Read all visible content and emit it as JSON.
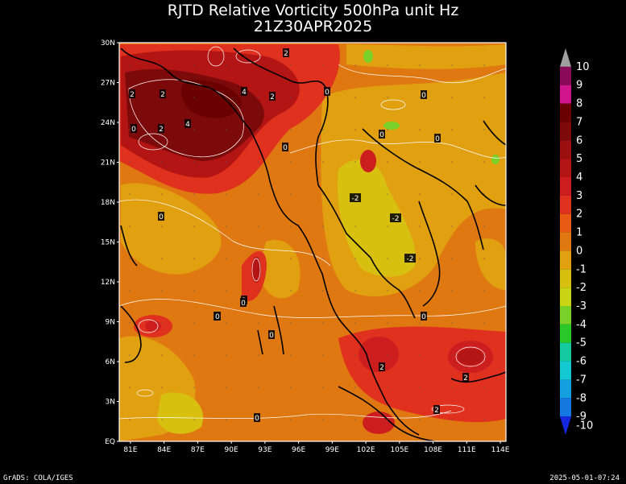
{
  "title_line1": "RJTD Relative Vorticity 500hPa unit Hz",
  "title_line2": "21Z30APR2025",
  "map": {
    "lat_labels": [
      "30N",
      "27N",
      "24N",
      "21N",
      "18N",
      "15N",
      "12N",
      "9N",
      "6N",
      "3N",
      "EQ"
    ],
    "lon_labels": [
      "81E",
      "84E",
      "87E",
      "90E",
      "93E",
      "96E",
      "99E",
      "102E",
      "105E",
      "108E",
      "111E",
      "114E"
    ],
    "lat_range": [
      0,
      30
    ],
    "lon_range": [
      80,
      114.5
    ]
  },
  "colorbar": {
    "levels": [
      {
        "label": "10",
        "color": "#a0a0a0"
      },
      {
        "label": "9",
        "color": "#8a0a5a"
      },
      {
        "label": "8",
        "color": "#d0148c"
      },
      {
        "label": "7",
        "color": "#6b0000"
      },
      {
        "label": "6",
        "color": "#7d0a0a"
      },
      {
        "label": "5",
        "color": "#9b0f0f"
      },
      {
        "label": "4",
        "color": "#b31414"
      },
      {
        "label": "3",
        "color": "#cc1e1e"
      },
      {
        "label": "2",
        "color": "#e0301e"
      },
      {
        "label": "1",
        "color": "#e85a14"
      },
      {
        "label": "0",
        "color": "#e07812"
      },
      {
        "label": "-1",
        "color": "#e0a010"
      },
      {
        "label": "-2",
        "color": "#d8c010"
      },
      {
        "label": "-3",
        "color": "#c8d414"
      },
      {
        "label": "-4",
        "color": "#78d028"
      },
      {
        "label": "-5",
        "color": "#28c828"
      },
      {
        "label": "-6",
        "color": "#14c8a0"
      },
      {
        "label": "-7",
        "color": "#14c8d2"
      },
      {
        "label": "-8",
        "color": "#14a0e0"
      },
      {
        "label": "-9",
        "color": "#1478e0"
      },
      {
        "label": "-10",
        "color": "#1428e0"
      }
    ]
  },
  "contour_labels": [
    "2",
    "2",
    "2",
    "4",
    "2",
    "0",
    "0",
    "2",
    "0",
    "4",
    "0",
    "0",
    "0",
    "0",
    "0",
    "-2",
    "-2",
    "-2",
    "0",
    "2",
    "0",
    "0",
    "0",
    "2",
    "2",
    "0",
    "2"
  ],
  "footer_left": "GrADS: COLA/IGES",
  "footer_right": "2025-05-01-07:24"
}
